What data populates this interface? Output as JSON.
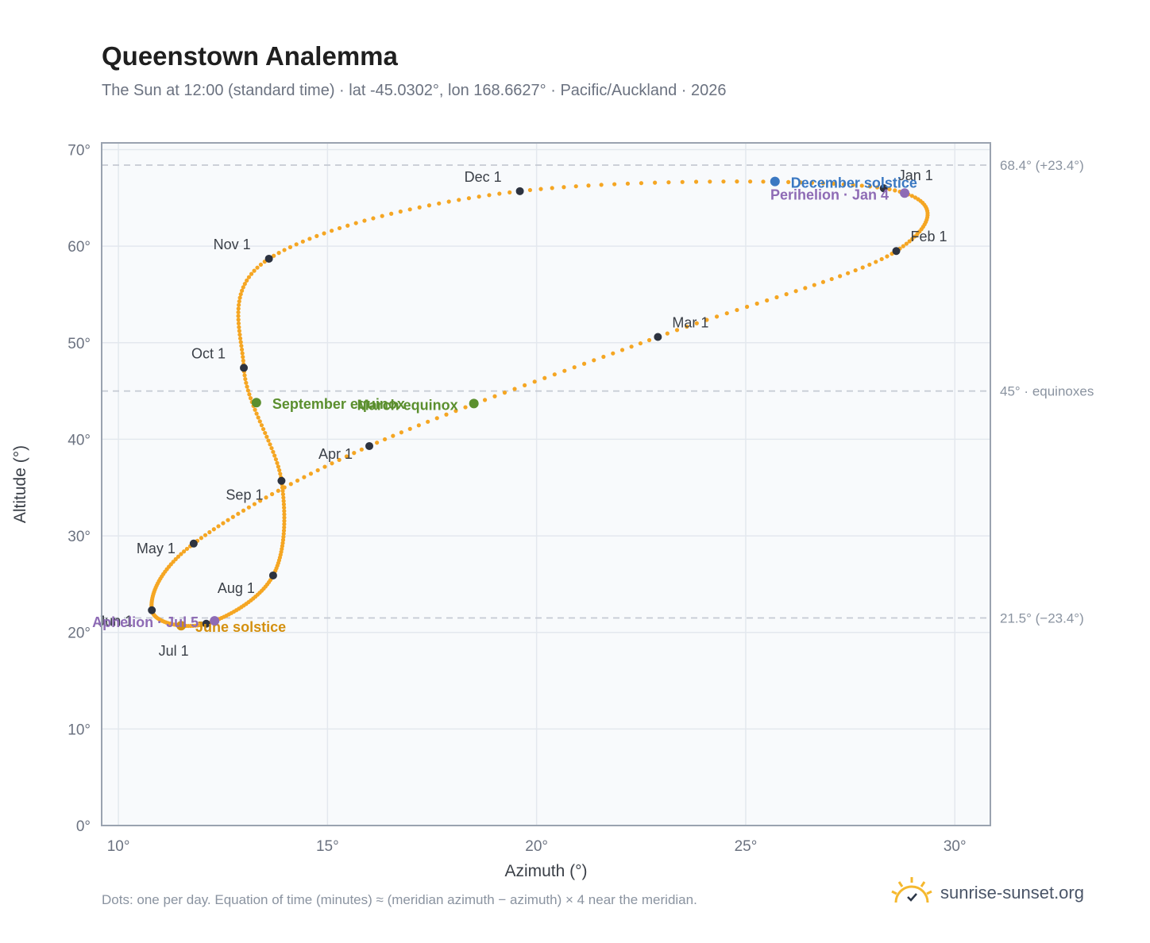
{
  "header": {
    "title": "Queenstown Analemma",
    "subtitle": "The Sun at 12:00 (standard time) · lat -45.0302°, lon 168.6627° · Pacific/Auckland · 2026"
  },
  "footer": {
    "note": "Dots: one per day. Equation of time (minutes) ≈ (meridian azimuth − azimuth) × 4 near the meridian.",
    "brand": "sunrise-sunset.org"
  },
  "colors": {
    "analemma": "#f5a623",
    "month_marker": "#2d3340",
    "december_solstice": "#3a78c2",
    "june_solstice": "#d4900f",
    "equinox": "#5b8f2e",
    "apsis": "#8e6bb5",
    "plot_background": "#f8fafc",
    "grid": "#e3e8ee",
    "reference_line": "#c5cad3"
  },
  "chart_data": {
    "type": "scatter",
    "xlabel": "Azimuth (°)",
    "ylabel": "Altitude (°)",
    "xlim": [
      9.6,
      30.85
    ],
    "ylim": [
      0,
      70.7
    ],
    "xticks": [
      10,
      15,
      20,
      25,
      30
    ],
    "yticks": [
      0,
      10,
      20,
      30,
      40,
      50,
      60,
      70
    ],
    "xtick_labels": [
      "10°",
      "15°",
      "20°",
      "25°",
      "30°"
    ],
    "ytick_labels": [
      "0°",
      "10°",
      "20°",
      "30°",
      "40°",
      "50°",
      "60°",
      "70°"
    ],
    "grid": true,
    "reference_lines": [
      {
        "y": 68.4,
        "label": "68.4° (+23.4°)"
      },
      {
        "y": 45.0,
        "label": "45° · equinoxes"
      },
      {
        "y": 21.5,
        "label": "21.5° (−23.4°)"
      }
    ],
    "month_markers": [
      {
        "label": "Jan 1",
        "x": 28.3,
        "y": 66.0
      },
      {
        "label": "Feb 1",
        "x": 28.6,
        "y": 59.5
      },
      {
        "label": "Mar 1",
        "x": 22.9,
        "y": 50.6
      },
      {
        "label": "Apr 1",
        "x": 16.0,
        "y": 39.3
      },
      {
        "label": "May 1",
        "x": 11.8,
        "y": 29.2
      },
      {
        "label": "Jun 1",
        "x": 10.8,
        "y": 22.3
      },
      {
        "label": "Jul 1",
        "x": 12.1,
        "y": 20.9
      },
      {
        "label": "Aug 1",
        "x": 13.7,
        "y": 25.9
      },
      {
        "label": "Sep 1",
        "x": 13.9,
        "y": 35.7
      },
      {
        "label": "Oct 1",
        "x": 13.0,
        "y": 47.4
      },
      {
        "label": "Nov 1",
        "x": 13.6,
        "y": 58.7
      },
      {
        "label": "Dec 1",
        "x": 19.6,
        "y": 65.7
      }
    ],
    "events": [
      {
        "label": "December solstice",
        "x": 25.7,
        "y": 66.7,
        "kind": "december_solstice"
      },
      {
        "label": "Perihelion · Jan 4",
        "x": 28.8,
        "y": 65.5,
        "kind": "apsis"
      },
      {
        "label": "March equinox",
        "x": 18.5,
        "y": 43.7,
        "kind": "equinox"
      },
      {
        "label": "September equinox",
        "x": 13.3,
        "y": 43.8,
        "kind": "equinox"
      },
      {
        "label": "June solstice",
        "x": 11.5,
        "y": 20.7,
        "kind": "june_solstice"
      },
      {
        "label": "Aphelion · Jul 5",
        "x": 12.3,
        "y": 21.2,
        "kind": "apsis"
      }
    ]
  }
}
